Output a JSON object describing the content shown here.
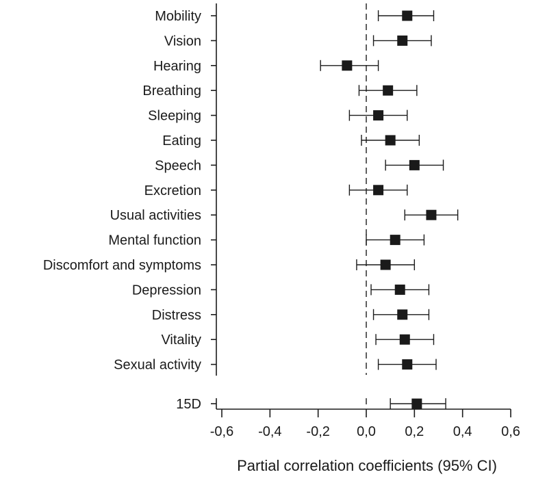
{
  "chart_data": {
    "type": "forest",
    "xlabel": "Partial correlation coefficients (95% CI)",
    "xlim": [
      -0.6,
      0.6
    ],
    "xticks": [
      -0.6,
      -0.4,
      -0.2,
      0.0,
      0.2,
      0.4,
      0.6
    ],
    "xtick_labels": [
      "-0,6",
      "-0,4",
      "-0,2",
      "0,0",
      "0,2",
      "0,4",
      "0,6"
    ],
    "reference_line": 0.0,
    "rows": [
      {
        "label": "Mobility",
        "estimate": 0.17,
        "lower": 0.05,
        "upper": 0.28
      },
      {
        "label": "Vision",
        "estimate": 0.15,
        "lower": 0.03,
        "upper": 0.27
      },
      {
        "label": "Hearing",
        "estimate": -0.08,
        "lower": -0.19,
        "upper": 0.05
      },
      {
        "label": "Breathing",
        "estimate": 0.09,
        "lower": -0.03,
        "upper": 0.21
      },
      {
        "label": "Sleeping",
        "estimate": 0.05,
        "lower": -0.07,
        "upper": 0.17
      },
      {
        "label": "Eating",
        "estimate": 0.1,
        "lower": -0.02,
        "upper": 0.22
      },
      {
        "label": "Speech",
        "estimate": 0.2,
        "lower": 0.08,
        "upper": 0.32
      },
      {
        "label": "Excretion",
        "estimate": 0.05,
        "lower": -0.07,
        "upper": 0.17
      },
      {
        "label": "Usual activities",
        "estimate": 0.27,
        "lower": 0.16,
        "upper": 0.38
      },
      {
        "label": "Mental function",
        "estimate": 0.12,
        "lower": 0.0,
        "upper": 0.24
      },
      {
        "label": "Discomfort and symptoms",
        "estimate": 0.08,
        "lower": -0.04,
        "upper": 0.2
      },
      {
        "label": "Depression",
        "estimate": 0.14,
        "lower": 0.02,
        "upper": 0.26
      },
      {
        "label": "Distress",
        "estimate": 0.15,
        "lower": 0.03,
        "upper": 0.26
      },
      {
        "label": "Vitality",
        "estimate": 0.16,
        "lower": 0.04,
        "upper": 0.28
      },
      {
        "label": "Sexual activity",
        "estimate": 0.17,
        "lower": 0.05,
        "upper": 0.29
      }
    ],
    "summary_row": {
      "label": "15D",
      "estimate": 0.21,
      "lower": 0.1,
      "upper": 0.33
    }
  }
}
